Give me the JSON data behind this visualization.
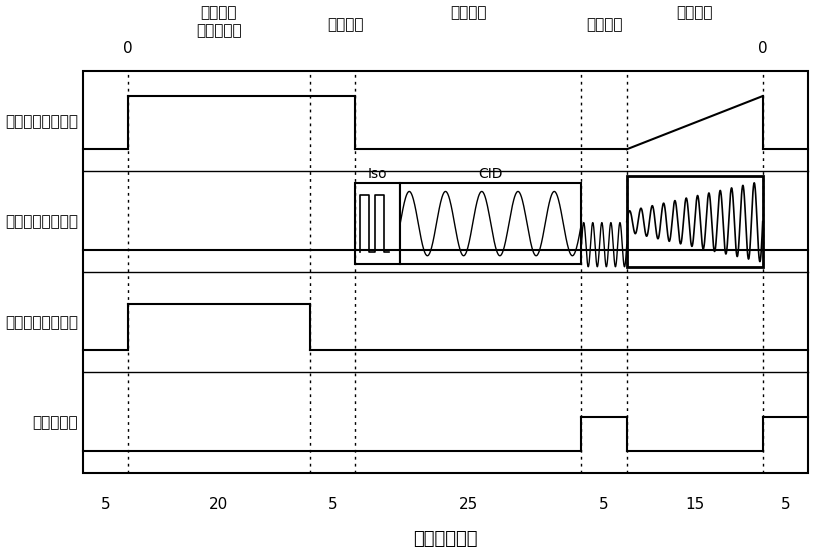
{
  "title": "",
  "xlabel": "时间（毫秒）",
  "row_labels": [
    "射频电压幅度控制",
    "辅助激发信号波形",
    "离子门控电极电压",
    "检测器开关"
  ],
  "phase_label_line1": [
    "离子捕获",
    "",
    "解离操作",
    "",
    "质量分析"
  ],
  "phase_label_line2": [
    "（离子化）",
    "离子冷却",
    "",
    "离子冷却",
    ""
  ],
  "x_tick_labels": [
    "5",
    "20",
    "5",
    "25",
    "5",
    "15",
    "5"
  ],
  "background_color": "#ffffff",
  "line_color": "#000000",
  "fig_width": 10.0,
  "fig_height": 6.04
}
